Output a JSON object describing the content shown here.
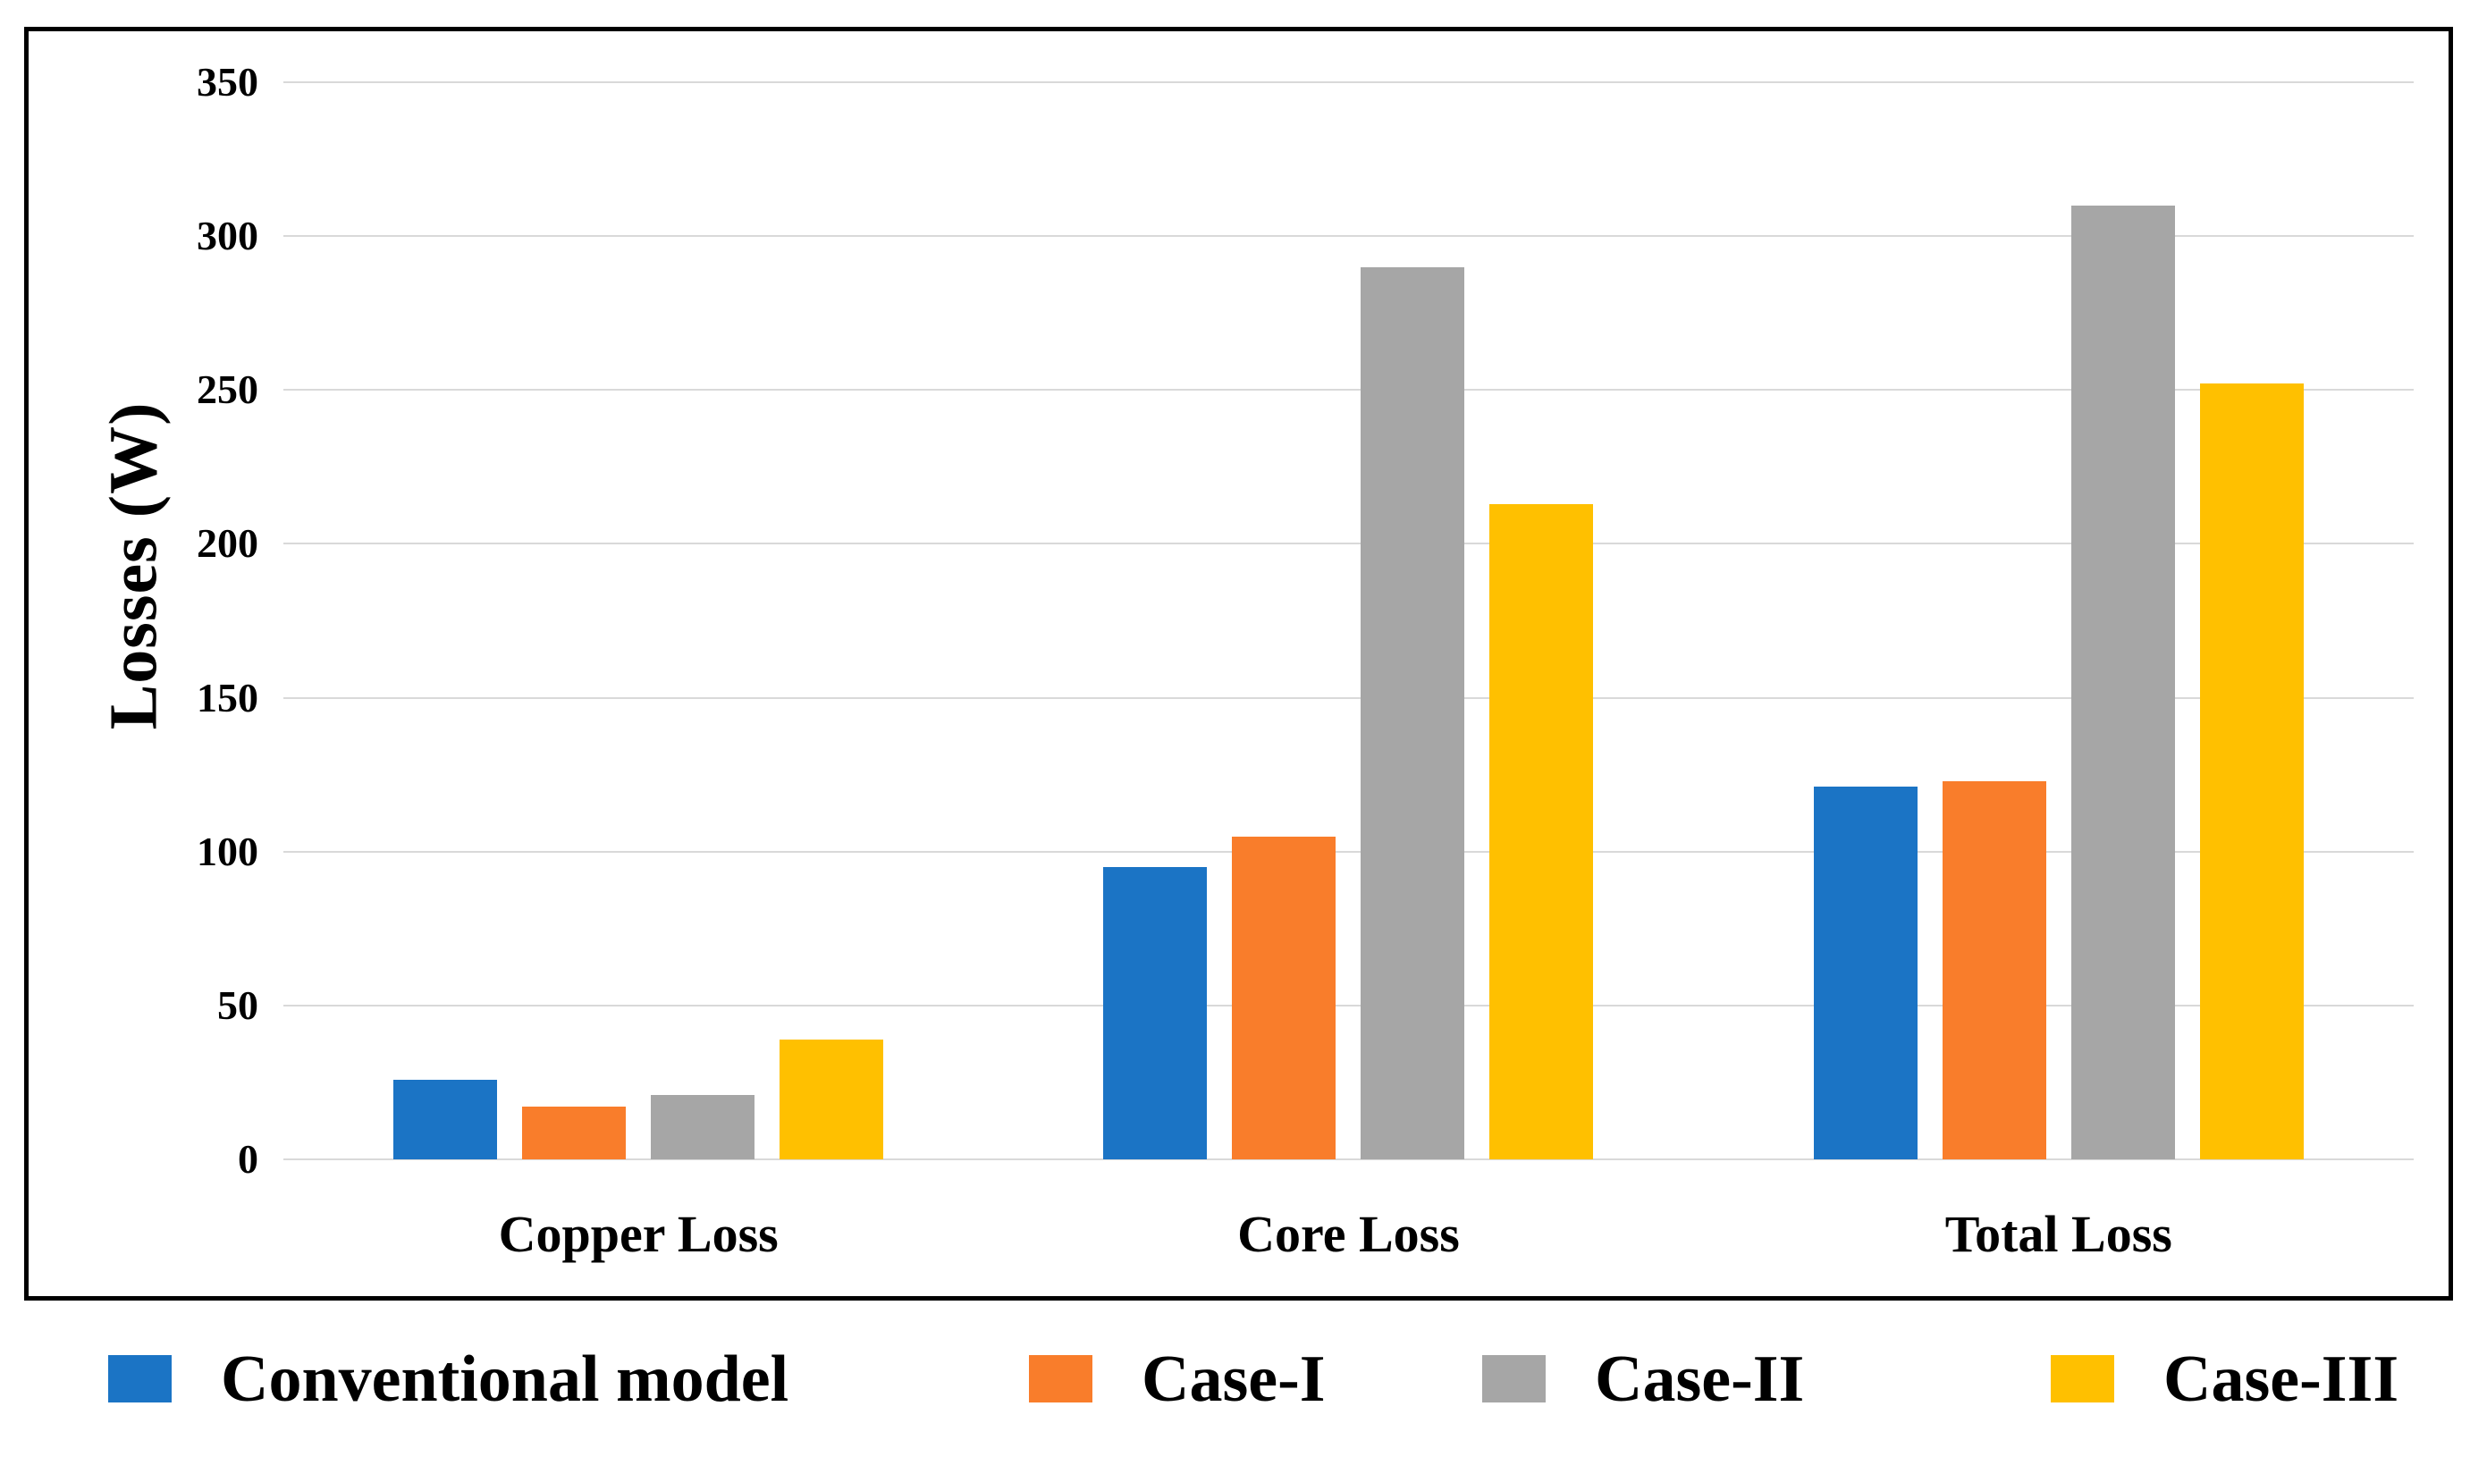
{
  "chart_data": {
    "type": "bar",
    "title": "",
    "xlabel": "",
    "ylabel": "Losses (W)",
    "categories": [
      "Copper Loss",
      "Core Loss",
      "Total Loss"
    ],
    "series": [
      {
        "name": "Conventional model",
        "color": "#1b74c5",
        "values": [
          26,
          95,
          121
        ]
      },
      {
        "name": "Case-I",
        "color": "#f97d2b",
        "values": [
          17,
          105,
          123
        ]
      },
      {
        "name": "Case-II",
        "color": "#a6a6a6",
        "values": [
          21,
          290,
          310
        ]
      },
      {
        "name": "Case-III",
        "color": "#ffc000",
        "values": [
          39,
          213,
          252
        ]
      }
    ],
    "ylim": [
      0,
      350
    ],
    "ytick_step": 50,
    "yticks": [
      0,
      50,
      100,
      150,
      200,
      250,
      300,
      350
    ],
    "grid": true,
    "gridline_color": "#d9d9d9",
    "frame_color": "#000000",
    "legend_position": "bottom"
  }
}
